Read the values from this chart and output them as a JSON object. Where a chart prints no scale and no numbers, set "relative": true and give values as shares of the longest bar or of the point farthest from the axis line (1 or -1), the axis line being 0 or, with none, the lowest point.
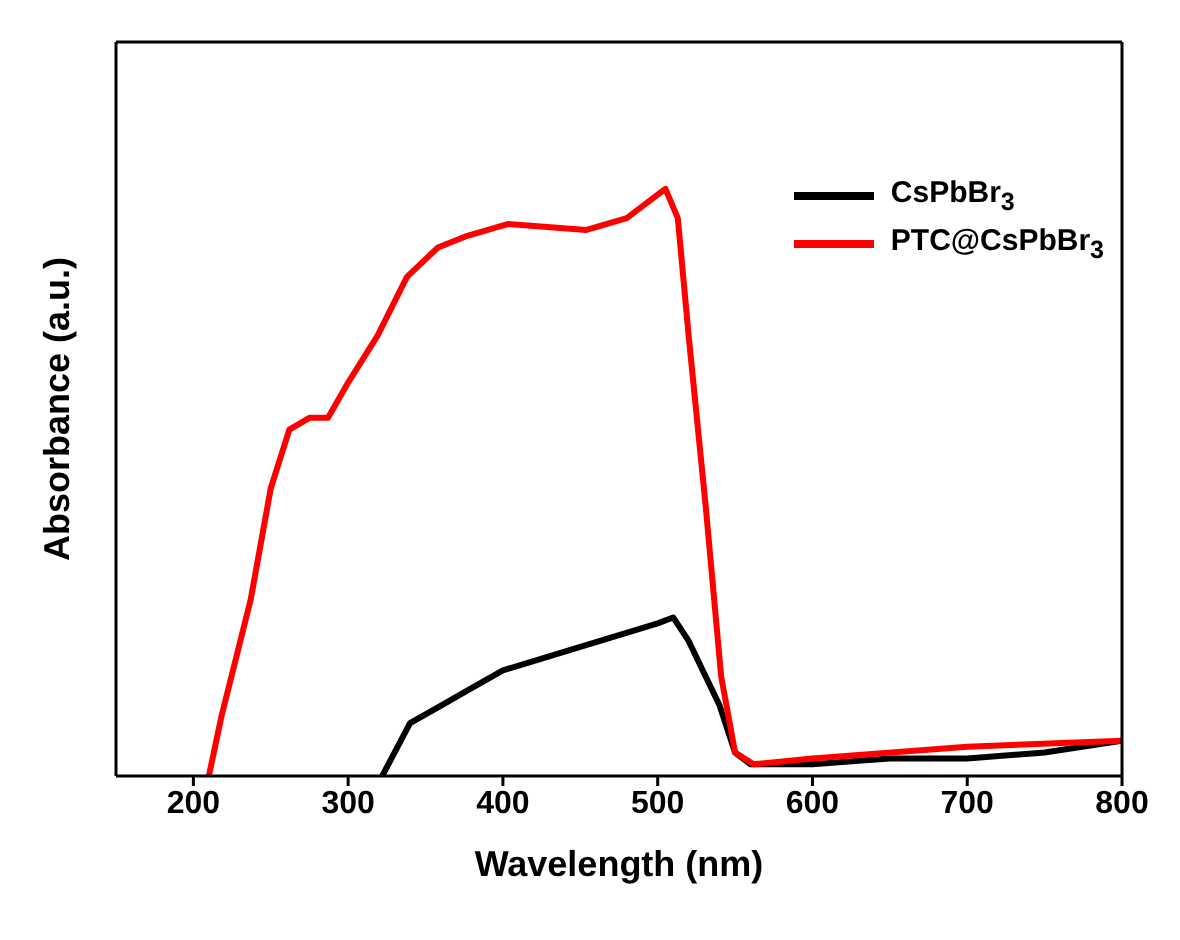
{
  "chart_data": {
    "type": "line",
    "relative": true,
    "xlabel": "Wavelength (nm)",
    "ylabel": "Absorbance (a.u.)",
    "xlim": [
      150,
      800
    ],
    "xticks": [
      200,
      300,
      400,
      500,
      600,
      700,
      800
    ],
    "legend": "top right",
    "grid": false,
    "marker": "none",
    "line_style": "solid",
    "series": [
      {
        "name": "CsPbBr$_{3}$",
        "color": "#000000",
        "x": [
          322,
          340,
          360,
          380,
          400,
          450,
          500,
          510,
          520,
          540,
          550,
          560,
          600,
          650,
          700,
          750,
          800
        ],
        "values": [
          0,
          0.09,
          0.12,
          0.15,
          0.18,
          0.22,
          0.26,
          0.27,
          0.23,
          0.12,
          0.04,
          0.02,
          0.02,
          0.03,
          0.03,
          0.04,
          0.06
        ]
      },
      {
        "name": "PTC@CsPbBr$_{3}$",
        "color": "#ff0000",
        "x": [
          210,
          218,
          237,
          250,
          262,
          275,
          287,
          300,
          319,
          338,
          358,
          377,
          403,
          454,
          480,
          500,
          505,
          513,
          520,
          531,
          541,
          550,
          562,
          600,
          700,
          800
        ],
        "values": [
          0,
          0.1,
          0.3,
          0.49,
          0.59,
          0.61,
          0.61,
          0.67,
          0.75,
          0.85,
          0.9,
          0.92,
          0.94,
          0.93,
          0.95,
          0.99,
          1,
          0.95,
          0.75,
          0.46,
          0.17,
          0.04,
          0.02,
          0.03,
          0.05,
          0.06
        ]
      }
    ]
  }
}
